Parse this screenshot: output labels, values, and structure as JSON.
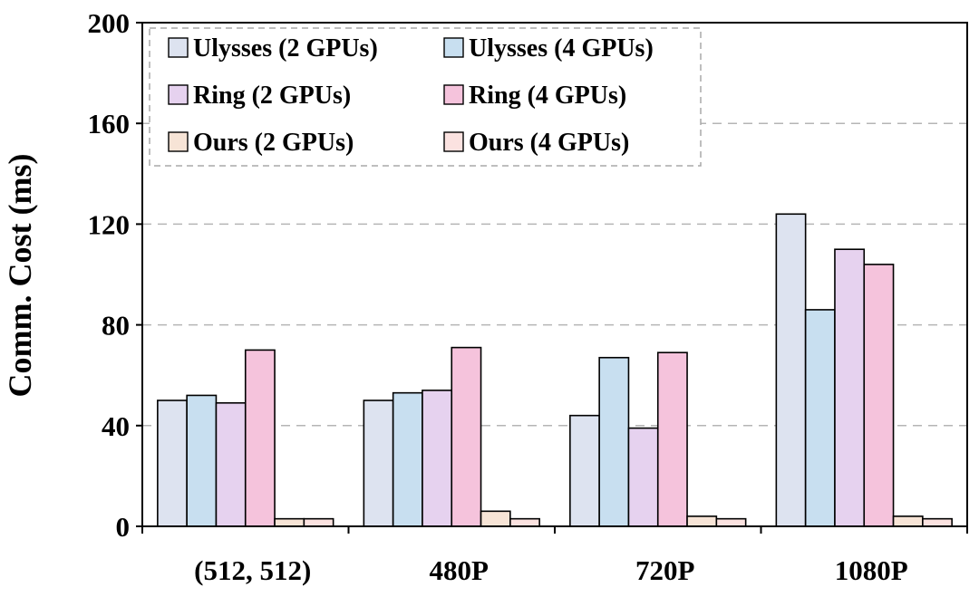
{
  "chart_data": {
    "type": "bar",
    "title": "",
    "xlabel": "",
    "ylabel": "Comm. Cost (ms)",
    "categories": [
      "(512, 512)",
      "480P",
      "720P",
      "1080P"
    ],
    "ylim": [
      0,
      200
    ],
    "yticks": [
      0,
      40,
      80,
      120,
      160,
      200
    ],
    "grid": "horizontal-dashed",
    "legend_position": "top-left",
    "series": [
      {
        "name": "Ulysses (2 GPUs)",
        "color": "#dde3f0",
        "values": [
          50,
          50,
          44,
          124
        ]
      },
      {
        "name": "Ulysses (4 GPUs)",
        "color": "#c8dff0",
        "values": [
          52,
          53,
          67,
          86
        ]
      },
      {
        "name": "Ring (2 GPUs)",
        "color": "#e6d2ef",
        "values": [
          49,
          54,
          39,
          110
        ]
      },
      {
        "name": "Ring (4 GPUs)",
        "color": "#f5c3dc",
        "values": [
          70,
          71,
          69,
          104
        ]
      },
      {
        "name": "Ours (2 GPUs)",
        "color": "#f7e4d6",
        "values": [
          3,
          6,
          4,
          4
        ]
      },
      {
        "name": "Ours (4 GPUs)",
        "color": "#fbe2e0",
        "values": [
          3,
          3,
          3,
          3
        ]
      }
    ]
  }
}
